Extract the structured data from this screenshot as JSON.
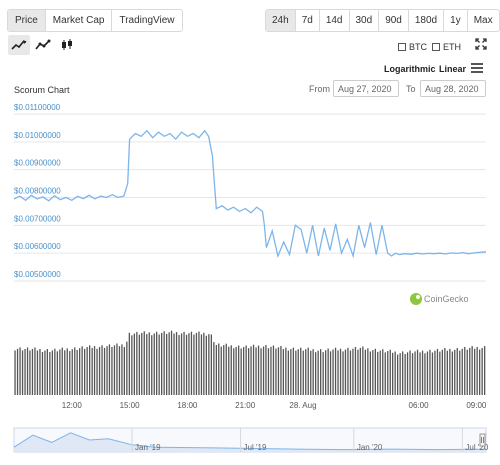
{
  "tabs": [
    {
      "label": "Price",
      "active": true
    },
    {
      "label": "Market Cap",
      "active": false
    },
    {
      "label": "TradingView",
      "active": false
    }
  ],
  "ranges": [
    {
      "label": "24h",
      "active": true
    },
    {
      "label": "7d",
      "active": false
    },
    {
      "label": "14d",
      "active": false
    },
    {
      "label": "30d",
      "active": false
    },
    {
      "label": "90d",
      "active": false
    },
    {
      "label": "180d",
      "active": false
    },
    {
      "label": "1y",
      "active": false
    },
    {
      "label": "Max",
      "active": false
    }
  ],
  "chart_types": [
    "line-chart-icon",
    "area-chart-icon",
    "candlestick-icon"
  ],
  "compare": {
    "btc": "BTC",
    "eth": "ETH"
  },
  "scale": {
    "log": "Logarithmic",
    "linear": "Linear"
  },
  "range_picker": {
    "from_label": "From",
    "from": "Aug 27, 2020",
    "to_label": "To",
    "to": "Aug 28, 2020"
  },
  "watermark": "CoinGecko",
  "colors": {
    "line": "#7cb5ec",
    "volume": "#555555",
    "grid": "#e6e6e6",
    "axis_text": "#4a90c8"
  },
  "chart_data": {
    "type": "line",
    "title": "Scorum Chart",
    "x_unit": "hours since Aug 27 09:00 (local)",
    "ylim": [
      0.005,
      0.011
    ],
    "yticks": [
      0.005,
      0.006,
      0.007,
      0.008,
      0.009,
      0.01,
      0.011
    ],
    "ytick_labels": [
      "$0.00500000",
      "$0.00600000",
      "$0.00700000",
      "$0.00800000",
      "$0.00900000",
      "$0.01000000",
      "$0.01100000"
    ],
    "xlim": [
      0,
      24.5
    ],
    "xticks": [
      {
        "x": 3,
        "label": "12:00"
      },
      {
        "x": 6,
        "label": "15:00"
      },
      {
        "x": 9,
        "label": "18:00"
      },
      {
        "x": 12,
        "label": "21:00"
      },
      {
        "x": 15,
        "label": "28. Aug"
      },
      {
        "x": 21,
        "label": "06:00"
      },
      {
        "x": 24,
        "label": "09:00"
      }
    ],
    "price": {
      "x": [
        0,
        0.3,
        0.6,
        0.9,
        1.2,
        1.5,
        1.8,
        2.1,
        2.4,
        2.7,
        3.0,
        3.3,
        3.6,
        3.9,
        4.2,
        4.5,
        4.8,
        5.1,
        5.4,
        5.7,
        5.9,
        6.0,
        6.3,
        6.6,
        6.9,
        7.2,
        7.5,
        7.8,
        8.1,
        8.4,
        8.7,
        9.0,
        9.3,
        9.6,
        9.9,
        10.1,
        10.3,
        10.4,
        10.5,
        10.8,
        11.1,
        11.4,
        11.7,
        12.0,
        12.3,
        12.6,
        12.9,
        13.0,
        13.1,
        13.4,
        13.7,
        14.0,
        14.3,
        14.6,
        14.9,
        15.2,
        15.5,
        15.8,
        16.1,
        16.4,
        16.7,
        17.0,
        17.3,
        17.6,
        17.9,
        18.2,
        18.5,
        18.8,
        19.1,
        19.4,
        19.6,
        19.8,
        20.0,
        20.3,
        20.6,
        20.9,
        21.2,
        21.5,
        21.8,
        22.1,
        22.4,
        22.7,
        23.0,
        23.3,
        23.6,
        23.9,
        24.2,
        24.5
      ],
      "y": [
        0.00795,
        0.00805,
        0.0079,
        0.00808,
        0.00795,
        0.00802,
        0.00788,
        0.00806,
        0.00792,
        0.008,
        0.0079,
        0.00804,
        0.00796,
        0.00808,
        0.00795,
        0.00805,
        0.008,
        0.0081,
        0.008,
        0.00805,
        0.0085,
        0.0101,
        0.0103,
        0.0102,
        0.0104,
        0.01015,
        0.01035,
        0.0102,
        0.0103,
        0.0101,
        0.01035,
        0.0102,
        0.0103,
        0.01015,
        0.0104,
        0.0102,
        0.0095,
        0.0085,
        0.0076,
        0.0077,
        0.00755,
        0.00765,
        0.0075,
        0.0076,
        0.00745,
        0.00765,
        0.0075,
        0.007,
        0.0062,
        0.0068,
        0.0059,
        0.0064,
        0.00595,
        0.007,
        0.00685,
        0.006,
        0.007,
        0.0059,
        0.0069,
        0.0061,
        0.00705,
        0.006,
        0.0065,
        0.0059,
        0.007,
        0.0062,
        0.0071,
        0.00595,
        0.007,
        0.006,
        0.0059,
        0.006,
        0.00595,
        0.00598,
        0.00596,
        0.006,
        0.00597,
        0.00599,
        0.00598,
        0.006,
        0.00597,
        0.00601,
        0.00599,
        0.00602,
        0.00598,
        0.00601,
        0.00603,
        0.00605
      ]
    },
    "volume_relative": {
      "x": [
        0,
        2,
        4,
        5.8,
        6.0,
        8,
        10.2,
        10.5,
        12,
        13,
        14,
        16,
        18,
        20,
        22,
        24.5
      ],
      "v": [
        0.42,
        0.4,
        0.43,
        0.45,
        0.55,
        0.56,
        0.55,
        0.45,
        0.43,
        0.44,
        0.42,
        0.4,
        0.42,
        0.38,
        0.4,
        0.43
      ]
    },
    "navigator": {
      "labels": [
        "Jan '19",
        "Jul '19",
        "Jan '20",
        "Jul '20"
      ],
      "x": [
        0,
        0.04,
        0.08,
        0.12,
        0.16,
        0.2,
        0.25,
        0.3,
        0.4,
        0.5,
        0.6,
        0.7,
        0.8,
        0.9,
        1.0
      ],
      "y": [
        0.2,
        0.7,
        0.4,
        0.8,
        0.5,
        0.55,
        0.3,
        0.2,
        0.18,
        0.15,
        0.12,
        0.1,
        0.12,
        0.1,
        0.12
      ]
    }
  }
}
